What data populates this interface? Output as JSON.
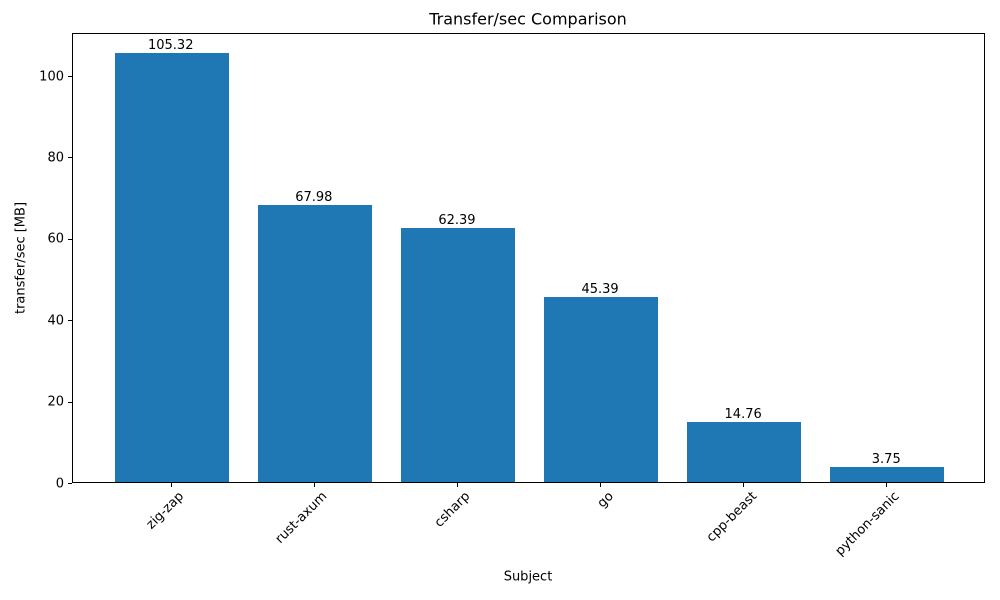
{
  "chart_data": {
    "type": "bar",
    "title": "Transfer/sec Comparison",
    "xlabel": "Subject",
    "ylabel": "transfer/sec [MB]",
    "categories": [
      "zig-zap",
      "rust-axum",
      "csharp",
      "go",
      "cpp-beast",
      "python-sanic"
    ],
    "values": [
      105.32,
      67.98,
      62.39,
      45.39,
      14.76,
      3.75
    ],
    "value_labels": [
      "105.32",
      "67.98",
      "62.39",
      "45.39",
      "14.76",
      "3.75"
    ],
    "ylim": [
      0,
      110.59
    ],
    "yticks": [
      0,
      20,
      40,
      60,
      80,
      100
    ],
    "bar_color": "#1f77b4",
    "bar_width_fraction": 0.8,
    "x_tick_rotation_deg": 45,
    "grid": false,
    "legend": "none",
    "spine_color": "#000000",
    "text_color": "#000000",
    "background_color": "#ffffff"
  }
}
